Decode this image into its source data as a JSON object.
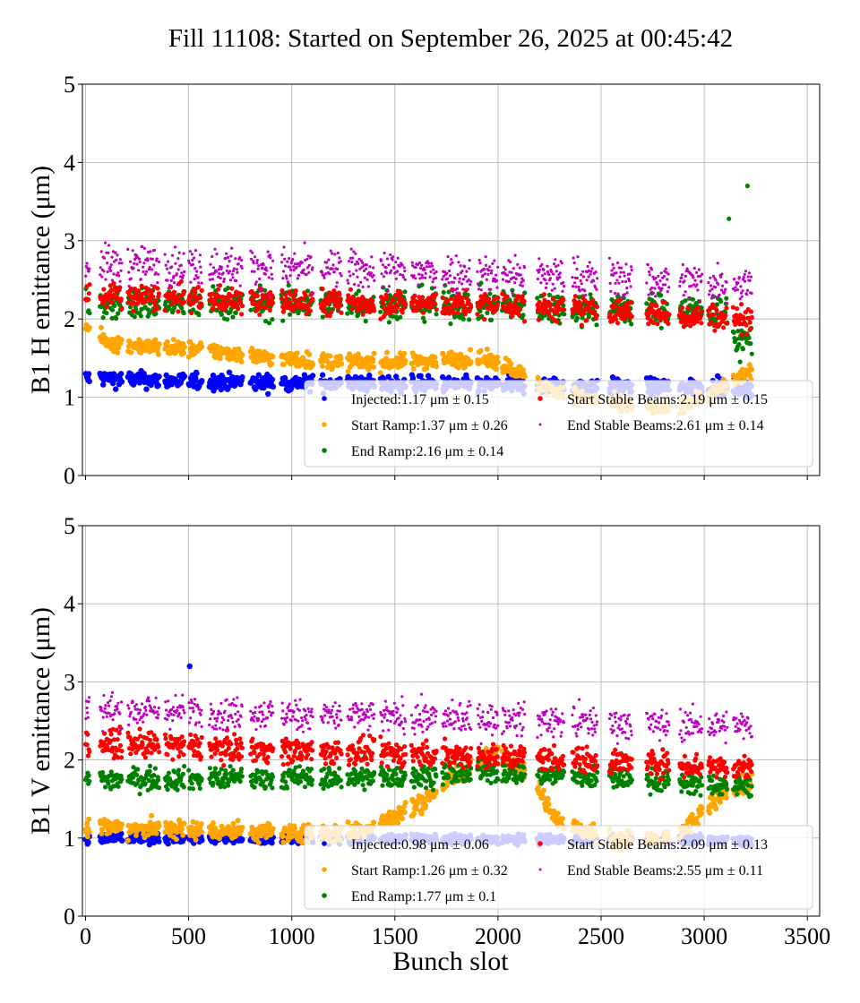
{
  "chart_data": {
    "type": "scatter",
    "title": "Fill 11108: Started on September 26, 2025 at 00:45:42",
    "xlabel": "Bunch slot",
    "xlim": [
      -15,
      3560
    ],
    "xticks": [
      0,
      500,
      1000,
      1500,
      2000,
      2500,
      3000,
      3500
    ],
    "yticks": [
      0,
      1,
      2,
      3,
      4,
      5
    ],
    "grid": true,
    "bunch_trains": [
      [
        0,
        20
      ],
      [
        70,
        175
      ],
      [
        205,
        355
      ],
      [
        385,
        480
      ],
      [
        500,
        565
      ],
      [
        600,
        760
      ],
      [
        800,
        910
      ],
      [
        950,
        1100
      ],
      [
        1140,
        1240
      ],
      [
        1270,
        1400
      ],
      [
        1430,
        1550
      ],
      [
        1580,
        1700
      ],
      [
        1730,
        1870
      ],
      [
        1900,
        2000
      ],
      [
        2020,
        2130
      ],
      [
        2190,
        2320
      ],
      [
        2360,
        2480
      ],
      [
        2540,
        2650
      ],
      [
        2720,
        2830
      ],
      [
        2880,
        2990
      ],
      [
        3020,
        3110
      ],
      [
        3140,
        3230
      ]
    ],
    "panels": [
      {
        "ylabel": "B1 H emittance (μm)",
        "ylim": [
          0,
          5
        ],
        "legend_position": "lower-right",
        "series": [
          {
            "name": "Injected",
            "legend": "Injected:1.17 μm ± 0.15",
            "color": "#0000ff",
            "trend": [
              [
                0,
                1.25
              ],
              [
                500,
                1.2
              ],
              [
                1500,
                1.17
              ],
              [
                3200,
                1.12
              ]
            ],
            "spread": 0.05
          },
          {
            "name": "Start Ramp",
            "legend": "Start Ramp:1.37 μm ± 0.26",
            "color": "#ffa500",
            "trend": [
              [
                0,
                1.9
              ],
              [
                100,
                1.7
              ],
              [
                300,
                1.65
              ],
              [
                600,
                1.6
              ],
              [
                900,
                1.5
              ],
              [
                1200,
                1.45
              ],
              [
                1500,
                1.45
              ],
              [
                1900,
                1.5
              ],
              [
                2050,
                1.4
              ],
              [
                2200,
                1.15
              ],
              [
                2400,
                1.0
              ],
              [
                2600,
                0.9
              ],
              [
                2800,
                0.85
              ],
              [
                3000,
                1.0
              ],
              [
                3200,
                1.3
              ]
            ],
            "spread": 0.05
          },
          {
            "name": "End Ramp",
            "legend": "End Ramp:2.16 μm ± 0.14",
            "color": "#008000",
            "trend": [
              [
                0,
                2.2
              ],
              [
                1500,
                2.2
              ],
              [
                3100,
                2.1
              ],
              [
                3150,
                1.7
              ],
              [
                3230,
                1.75
              ]
            ],
            "spread": 0.1
          },
          {
            "name": "Start Stable Beams",
            "legend": "Start Stable Beams:2.19 μm ± 0.15",
            "color": "#ff0000",
            "trend": [
              [
                0,
                2.3
              ],
              [
                1000,
                2.22
              ],
              [
                2000,
                2.18
              ],
              [
                3230,
                2.0
              ]
            ],
            "spread": 0.08
          },
          {
            "name": "End Stable Beams",
            "legend": "End Stable Beams:2.61 μm ± 0.14",
            "color": "#c000c0",
            "trend": [
              [
                0,
                2.7
              ],
              [
                1000,
                2.65
              ],
              [
                2000,
                2.58
              ],
              [
                3230,
                2.45
              ]
            ],
            "spread": 0.12
          }
        ],
        "outliers": [
          {
            "series": "End Ramp",
            "x": 3120,
            "y": 3.28
          },
          {
            "series": "End Ramp",
            "x": 3210,
            "y": 3.7
          }
        ]
      },
      {
        "ylabel": "B1 V emittance (μm)",
        "ylim": [
          0,
          5
        ],
        "legend_position": "lower-right",
        "series": [
          {
            "name": "Injected",
            "legend": "Injected:0.98 μm ± 0.06",
            "color": "#0000ff",
            "trend": [
              [
                0,
                1.0
              ],
              [
                3230,
                0.97
              ]
            ],
            "spread": 0.03
          },
          {
            "name": "Start Ramp",
            "legend": "Start Ramp:1.26 μm ± 0.32",
            "color": "#ffa500",
            "trend": [
              [
                0,
                1.15
              ],
              [
                1200,
                1.05
              ],
              [
                1350,
                1.1
              ],
              [
                1600,
                1.4
              ],
              [
                1800,
                1.8
              ],
              [
                2000,
                2.1
              ],
              [
                2150,
                1.8
              ],
              [
                2300,
                1.2
              ],
              [
                2500,
                1.0
              ],
              [
                2800,
                0.95
              ],
              [
                2950,
                1.2
              ],
              [
                3100,
                1.6
              ],
              [
                3230,
                1.7
              ]
            ],
            "spread": 0.06
          },
          {
            "name": "End Ramp",
            "legend": "End Ramp:1.77 μm ± 0.1",
            "color": "#008000",
            "trend": [
              [
                0,
                1.75
              ],
              [
                1500,
                1.78
              ],
              [
                2000,
                1.85
              ],
              [
                3230,
                1.65
              ]
            ],
            "spread": 0.07
          },
          {
            "name": "Start Stable Beams",
            "legend": "Start Stable Beams:2.09 μm ± 0.13",
            "color": "#ff0000",
            "trend": [
              [
                0,
                2.22
              ],
              [
                1000,
                2.12
              ],
              [
                2000,
                2.05
              ],
              [
                3230,
                1.9
              ]
            ],
            "spread": 0.08
          },
          {
            "name": "End Stable Beams",
            "legend": "End Stable Beams:2.55 μm ± 0.11",
            "color": "#c000c0",
            "trend": [
              [
                0,
                2.65
              ],
              [
                1000,
                2.58
              ],
              [
                2000,
                2.52
              ],
              [
                3230,
                2.42
              ]
            ],
            "spread": 0.1
          }
        ],
        "outliers": [
          {
            "series": "Injected",
            "x": 505,
            "y": 3.2
          }
        ]
      }
    ]
  }
}
